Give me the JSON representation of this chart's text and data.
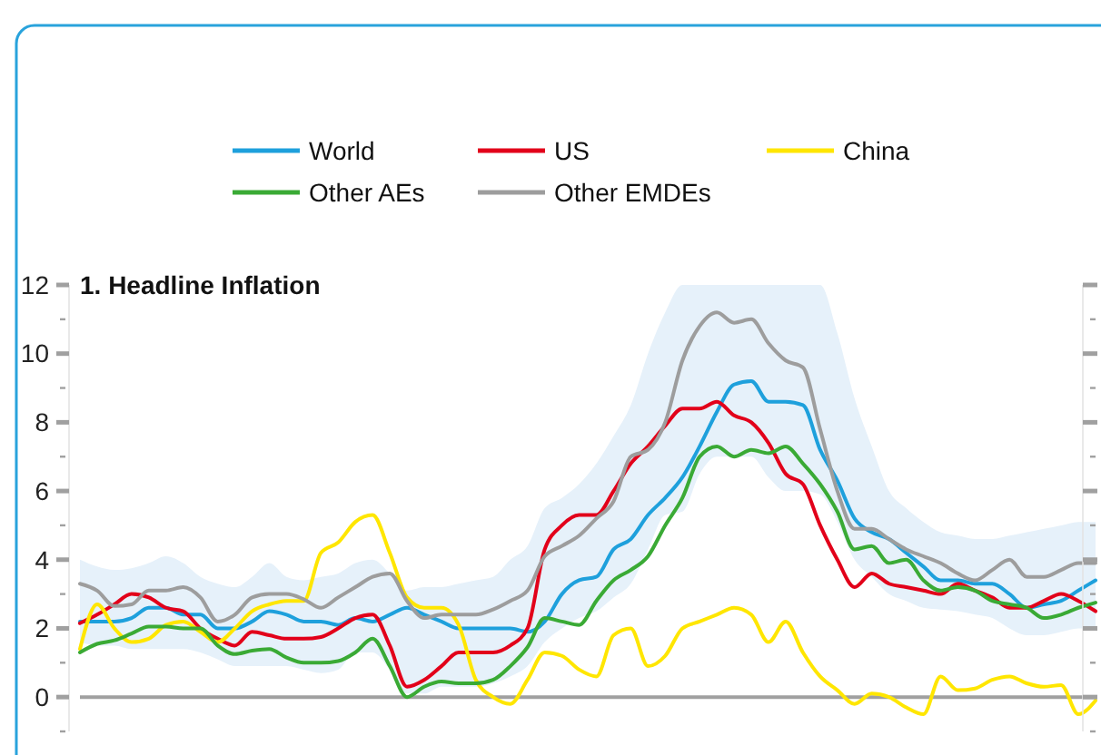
{
  "chart_data": {
    "type": "line",
    "title": "1. Headline Inflation",
    "categories": [
      null,
      null,
      null,
      null,
      null,
      null,
      null,
      null,
      null,
      null,
      null,
      null,
      null,
      null,
      null,
      null,
      null,
      null,
      null,
      null,
      null,
      null,
      null,
      null,
      null,
      null,
      null,
      null,
      null,
      null,
      null,
      null,
      null,
      null,
      null,
      null,
      null,
      null,
      null,
      null,
      null,
      null,
      null,
      null,
      null,
      null,
      null,
      null,
      null,
      null,
      null,
      null,
      null,
      null,
      null,
      null,
      null,
      null,
      null,
      null
    ],
    "series": [
      {
        "name": "World",
        "color": "#1ea0dc",
        "values": [
          2.2,
          2.2,
          2.2,
          2.3,
          2.6,
          2.6,
          2.4,
          2.4,
          2.0,
          2.0,
          2.2,
          2.5,
          2.4,
          2.2,
          2.2,
          2.1,
          2.3,
          2.2,
          2.4,
          2.6,
          2.4,
          2.2,
          2.0,
          2.0,
          2.0,
          2.0,
          1.9,
          2.2,
          3.0,
          3.4,
          3.5,
          4.3,
          4.6,
          5.3,
          5.8,
          6.4,
          7.3,
          8.3,
          9.1,
          9.2,
          8.6,
          8.6,
          8.5,
          7.2,
          6.3,
          5.2,
          4.8,
          4.6,
          4.2,
          3.8,
          3.4,
          3.4,
          3.3,
          3.3,
          3.0,
          2.6,
          2.7,
          2.8,
          3.1,
          3.4
        ],
        "lower": [
          1.6,
          1.5,
          1.5,
          1.4,
          1.4,
          1.4,
          1.4,
          1.3,
          1.1,
          0.9,
          0.9,
          0.9,
          0.9,
          0.8,
          0.7,
          0.8,
          1.3,
          1.3,
          0.8,
          0.1,
          0.1,
          0.3,
          0.3,
          0.3,
          0.4,
          0.6,
          0.9,
          1.6,
          2.0,
          2.3,
          2.5,
          2.9,
          3.3,
          4.3,
          5.3,
          5.4,
          6.5,
          7.0,
          7.0,
          7.0,
          6.4,
          6.0,
          6.0,
          5.9,
          5.1,
          4.0,
          3.5,
          3.0,
          2.8,
          2.6,
          2.55,
          2.5,
          2.4,
          2.3,
          2.0,
          1.8,
          1.8,
          1.9,
          2.0,
          2.0
        ],
        "upper": [
          4.0,
          3.8,
          3.7,
          3.75,
          3.9,
          4.1,
          3.9,
          3.5,
          3.3,
          3.2,
          3.5,
          3.9,
          3.5,
          3.4,
          3.5,
          3.6,
          3.9,
          4.0,
          3.6,
          3.1,
          3.2,
          3.2,
          3.3,
          3.4,
          3.5,
          4.0,
          4.4,
          5.5,
          5.8,
          6.2,
          6.8,
          7.6,
          8.5,
          10.0,
          11.2,
          12,
          12,
          12,
          12,
          12,
          12,
          12,
          12,
          12,
          10.6,
          8.7,
          7.3,
          6.0,
          5.5,
          5.1,
          4.8,
          4.7,
          4.6,
          4.6,
          4.7,
          4.8,
          4.9,
          5.0,
          5.1,
          5.1
        ]
      },
      {
        "name": "US",
        "color": "#e2001a",
        "values": [
          2.15,
          2.4,
          2.7,
          3.0,
          2.9,
          2.6,
          2.5,
          2.0,
          1.7,
          1.5,
          1.9,
          1.8,
          1.7,
          1.7,
          1.75,
          2.0,
          2.3,
          2.4,
          1.5,
          0.3,
          0.5,
          0.9,
          1.3,
          1.3,
          1.3,
          1.5,
          2.0,
          4.3,
          5.0,
          5.3,
          5.3,
          6.0,
          6.8,
          7.3,
          7.9,
          8.4,
          8.4,
          8.6,
          8.2,
          8.0,
          7.4,
          6.5,
          6.2,
          5.0,
          4.0,
          3.2,
          3.6,
          3.3,
          3.2,
          3.1,
          3.0,
          3.3,
          3.1,
          2.9,
          2.6,
          2.6,
          2.8,
          3.0,
          2.8,
          2.5
        ]
      },
      {
        "name": "China",
        "color": "#ffe600",
        "values": [
          1.4,
          2.7,
          2.0,
          1.6,
          1.7,
          2.1,
          2.2,
          1.9,
          1.6,
          2.0,
          2.5,
          2.7,
          2.8,
          2.8,
          4.2,
          4.5,
          5.1,
          5.3,
          4.2,
          2.9,
          2.6,
          2.6,
          2.1,
          0.5,
          0.0,
          -0.2,
          0.5,
          1.3,
          1.2,
          0.8,
          0.6,
          1.8,
          2.0,
          0.9,
          1.2,
          2.0,
          2.2,
          2.4,
          2.6,
          2.4,
          1.6,
          2.2,
          1.3,
          0.6,
          0.2,
          -0.2,
          0.1,
          0.0,
          -0.3,
          -0.5,
          0.6,
          0.2,
          0.25,
          0.5,
          0.6,
          0.4,
          0.3,
          0.35,
          -0.5,
          -0.1
        ]
      },
      {
        "name": "Other AEs",
        "color": "#3aaa35",
        "values": [
          1.3,
          1.55,
          1.65,
          1.85,
          2.05,
          2.05,
          2.0,
          2.0,
          1.5,
          1.25,
          1.35,
          1.4,
          1.15,
          1.0,
          1.0,
          1.05,
          1.3,
          1.7,
          0.9,
          0.0,
          0.3,
          0.45,
          0.4,
          0.4,
          0.5,
          0.9,
          1.45,
          2.3,
          2.2,
          2.1,
          2.8,
          3.4,
          3.7,
          4.1,
          5.0,
          5.8,
          7.0,
          7.3,
          7.0,
          7.2,
          7.1,
          7.3,
          6.8,
          6.2,
          5.4,
          4.3,
          4.4,
          3.9,
          4.0,
          3.4,
          3.1,
          3.2,
          3.1,
          2.8,
          2.7,
          2.6,
          2.3,
          2.4,
          2.6,
          2.75
        ]
      },
      {
        "name": "Other EMDEs",
        "color": "#9d9d9d",
        "values": [
          3.3,
          3.1,
          2.65,
          2.7,
          3.1,
          3.1,
          3.2,
          2.9,
          2.2,
          2.4,
          2.9,
          3.0,
          3.0,
          2.85,
          2.6,
          2.9,
          3.2,
          3.5,
          3.6,
          2.8,
          2.3,
          2.4,
          2.4,
          2.4,
          2.55,
          2.8,
          3.1,
          4.1,
          4.4,
          4.7,
          5.2,
          5.7,
          7.0,
          7.2,
          8.0,
          9.8,
          10.8,
          11.2,
          10.9,
          11.0,
          10.3,
          9.8,
          9.6,
          7.8,
          6.0,
          4.9,
          4.9,
          4.6,
          4.3,
          4.1,
          3.9,
          3.6,
          3.4,
          3.7,
          4.0,
          3.5,
          3.5,
          3.7,
          3.9,
          3.9
        ]
      }
    ],
    "ylim": [
      -1,
      12
    ],
    "yticks": [
      {
        "value": -1,
        "label": null
      },
      0,
      {
        "value": 1,
        "label": null
      },
      2,
      {
        "value": 3,
        "label": null
      },
      4,
      {
        "value": 5,
        "label": null
      },
      6,
      {
        "value": 7,
        "label": null
      },
      8,
      {
        "value": 9,
        "label": null
      },
      10,
      {
        "value": 11,
        "label": null
      },
      12
    ],
    "ref_lines": [
      {
        "axis": "y",
        "value": 0,
        "color": "#a0a0a0"
      }
    ],
    "legend": "top",
    "grid": false,
    "marker": "none",
    "line_style": "solid"
  }
}
